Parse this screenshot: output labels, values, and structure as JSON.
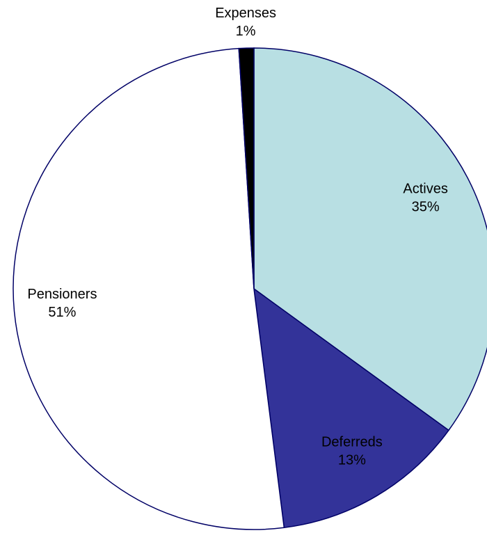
{
  "chart_data": {
    "type": "pie",
    "categories": [
      "Actives",
      "Deferreds",
      "Pensioners",
      "Expenses"
    ],
    "values": [
      35,
      13,
      51,
      1
    ],
    "value_labels": [
      "35%",
      "13%",
      "51%",
      "1%"
    ],
    "colors": [
      "#b8dfe3",
      "#333399",
      "#ffffff",
      "#000000"
    ]
  }
}
